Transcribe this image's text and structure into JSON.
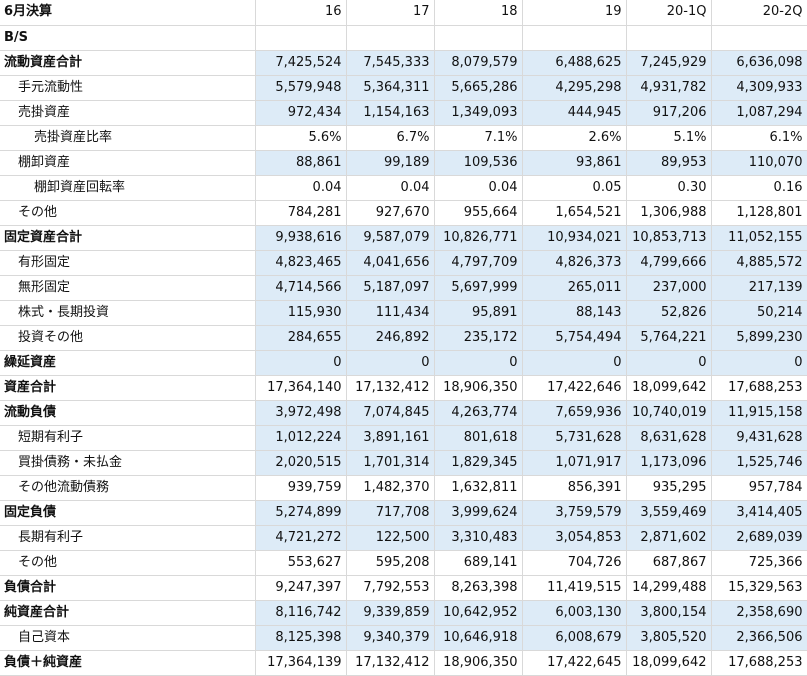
{
  "header": {
    "label": "6月決算",
    "columns": [
      "16",
      "17",
      "18",
      "19",
      "20-1Q",
      "20-2Q"
    ]
  },
  "section_label": "B/S",
  "rows": [
    {
      "label": "流動資産合計",
      "bold": true,
      "indent": 0,
      "shade": true,
      "values": [
        "7,425,524",
        "7,545,333",
        "8,079,579",
        "6,488,625",
        "7,245,929",
        "6,636,098"
      ]
    },
    {
      "label": "手元流動性",
      "bold": false,
      "indent": 1,
      "shade": true,
      "values": [
        "5,579,948",
        "5,364,311",
        "5,665,286",
        "4,295,298",
        "4,931,782",
        "4,309,933"
      ]
    },
    {
      "label": "売掛資産",
      "bold": false,
      "indent": 1,
      "shade": true,
      "values": [
        "972,434",
        "1,154,163",
        "1,349,093",
        "444,945",
        "917,206",
        "1,087,294"
      ]
    },
    {
      "label": "売掛資産比率",
      "bold": false,
      "indent": 2,
      "shade": false,
      "values": [
        "5.6%",
        "6.7%",
        "7.1%",
        "2.6%",
        "5.1%",
        "6.1%"
      ]
    },
    {
      "label": "棚卸資産",
      "bold": false,
      "indent": 1,
      "shade": true,
      "values": [
        "88,861",
        "99,189",
        "109,536",
        "93,861",
        "89,953",
        "110,070"
      ]
    },
    {
      "label": "棚卸資産回転率",
      "bold": false,
      "indent": 2,
      "shade": false,
      "values": [
        "0.04",
        "0.04",
        "0.04",
        "0.05",
        "0.30",
        "0.16"
      ]
    },
    {
      "label": "その他",
      "bold": false,
      "indent": 1,
      "shade": false,
      "values": [
        "784,281",
        "927,670",
        "955,664",
        "1,654,521",
        "1,306,988",
        "1,128,801"
      ]
    },
    {
      "label": "固定資産合計",
      "bold": true,
      "indent": 0,
      "shade": true,
      "values": [
        "9,938,616",
        "9,587,079",
        "10,826,771",
        "10,934,021",
        "10,853,713",
        "11,052,155"
      ]
    },
    {
      "label": "有形固定",
      "bold": false,
      "indent": 1,
      "shade": true,
      "values": [
        "4,823,465",
        "4,041,656",
        "4,797,709",
        "4,826,373",
        "4,799,666",
        "4,885,572"
      ]
    },
    {
      "label": "無形固定",
      "bold": false,
      "indent": 1,
      "shade": true,
      "values": [
        "4,714,566",
        "5,187,097",
        "5,697,999",
        "265,011",
        "237,000",
        "217,139"
      ]
    },
    {
      "label": "株式・長期投資",
      "bold": false,
      "indent": 1,
      "shade": true,
      "values": [
        "115,930",
        "111,434",
        "95,891",
        "88,143",
        "52,826",
        "50,214"
      ]
    },
    {
      "label": "投資その他",
      "bold": false,
      "indent": 1,
      "shade": true,
      "values": [
        "284,655",
        "246,892",
        "235,172",
        "5,754,494",
        "5,764,221",
        "5,899,230"
      ]
    },
    {
      "label": "繰延資産",
      "bold": true,
      "indent": 0,
      "shade": true,
      "values": [
        "0",
        "0",
        "0",
        "0",
        "0",
        "0"
      ]
    },
    {
      "label": "資産合計",
      "bold": true,
      "indent": 0,
      "shade": false,
      "values": [
        "17,364,140",
        "17,132,412",
        "18,906,350",
        "17,422,646",
        "18,099,642",
        "17,688,253"
      ]
    },
    {
      "label": "流動負債",
      "bold": true,
      "indent": 0,
      "shade": true,
      "values": [
        "3,972,498",
        "7,074,845",
        "4,263,774",
        "7,659,936",
        "10,740,019",
        "11,915,158"
      ]
    },
    {
      "label": "短期有利子",
      "bold": false,
      "indent": 1,
      "shade": true,
      "values": [
        "1,012,224",
        "3,891,161",
        "801,618",
        "5,731,628",
        "8,631,628",
        "9,431,628"
      ]
    },
    {
      "label": "買掛債務・未払金",
      "bold": false,
      "indent": 1,
      "shade": true,
      "values": [
        "2,020,515",
        "1,701,314",
        "1,829,345",
        "1,071,917",
        "1,173,096",
        "1,525,746"
      ]
    },
    {
      "label": "その他流動債務",
      "bold": false,
      "indent": 1,
      "shade": false,
      "values": [
        "939,759",
        "1,482,370",
        "1,632,811",
        "856,391",
        "935,295",
        "957,784"
      ]
    },
    {
      "label": "固定負債",
      "bold": true,
      "indent": 0,
      "shade": true,
      "values": [
        "5,274,899",
        "717,708",
        "3,999,624",
        "3,759,579",
        "3,559,469",
        "3,414,405"
      ]
    },
    {
      "label": "長期有利子",
      "bold": false,
      "indent": 1,
      "shade": true,
      "values": [
        "4,721,272",
        "122,500",
        "3,310,483",
        "3,054,853",
        "2,871,602",
        "2,689,039"
      ]
    },
    {
      "label": "その他",
      "bold": false,
      "indent": 1,
      "shade": false,
      "values": [
        "553,627",
        "595,208",
        "689,141",
        "704,726",
        "687,867",
        "725,366"
      ]
    },
    {
      "label": "負債合計",
      "bold": true,
      "indent": 0,
      "shade": false,
      "values": [
        "9,247,397",
        "7,792,553",
        "8,263,398",
        "11,419,515",
        "14,299,488",
        "15,329,563"
      ]
    },
    {
      "label": "純資産合計",
      "bold": true,
      "indent": 0,
      "shade": true,
      "values": [
        "8,116,742",
        "9,339,859",
        "10,642,952",
        "6,003,130",
        "3,800,154",
        "2,358,690"
      ]
    },
    {
      "label": "自己資本",
      "bold": false,
      "indent": 1,
      "shade": true,
      "values": [
        "8,125,398",
        "9,340,379",
        "10,646,918",
        "6,008,679",
        "3,805,520",
        "2,366,506"
      ]
    },
    {
      "label": "負債＋純資産",
      "bold": true,
      "indent": 0,
      "shade": false,
      "values": [
        "17,364,139",
        "17,132,412",
        "18,906,350",
        "17,422,645",
        "18,099,642",
        "17,688,253"
      ]
    }
  ]
}
